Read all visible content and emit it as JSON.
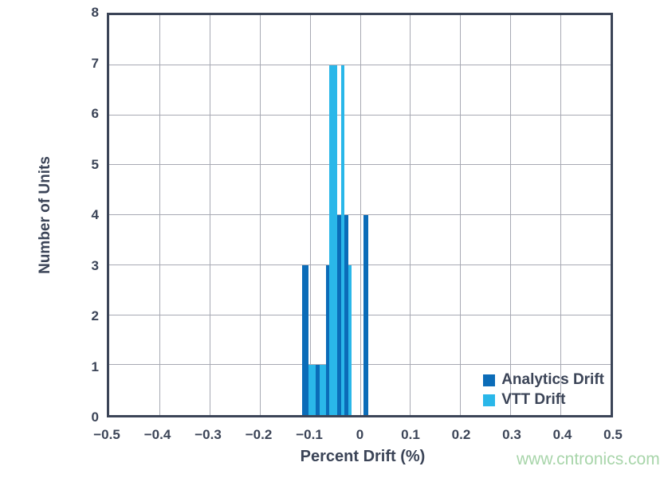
{
  "watermark_text": "www.cntronics.com",
  "colors": {
    "analytics": "#0b6cb8",
    "vtt": "#2ab7e9",
    "axis": "#3b4457",
    "grid": "#a7a9b3",
    "watermark": "#a8d5aa",
    "background": "#ffffff"
  },
  "chart_data": {
    "type": "bar",
    "title": "",
    "xlabel": "Percent Drift (%)",
    "ylabel": "Number of Units",
    "xlim": [
      -0.5,
      0.5
    ],
    "ylim": [
      0,
      8
    ],
    "grid": true,
    "legend_position": "inside-bottom-right",
    "x_tick_values": [
      -0.5,
      -0.4,
      -0.3,
      -0.2,
      -0.1,
      0,
      0.1,
      0.2,
      0.3,
      0.4,
      0.5
    ],
    "x_tick_labels": [
      "−0.5",
      "−0.4",
      "−0.3",
      "−0.2",
      "−0.1",
      "0",
      "0.1",
      "0.2",
      "0.3",
      "0.4",
      "0.5"
    ],
    "y_tick_values": [
      0,
      1,
      2,
      3,
      4,
      5,
      6,
      7,
      8
    ],
    "y_tick_labels": [
      "0",
      "1",
      "2",
      "3",
      "4",
      "5",
      "6",
      "7",
      "8"
    ],
    "series": [
      {
        "name": "Analytics Drift",
        "color_key": "analytics",
        "total_units": 19
      },
      {
        "name": "VTT Drift",
        "color_key": "vtt",
        "total_units": 19
      }
    ],
    "bars": [
      {
        "series": "Analytics Drift",
        "x0": -0.116,
        "x1": -0.102,
        "count": 3
      },
      {
        "series": "VTT Drift",
        "x0": -0.102,
        "x1": -0.088,
        "count": 1
      },
      {
        "series": "Analytics Drift",
        "x0": -0.088,
        "x1": -0.08,
        "count": 1
      },
      {
        "series": "VTT Drift",
        "x0": -0.08,
        "x1": -0.068,
        "count": 1
      },
      {
        "series": "Analytics Drift",
        "x0": -0.068,
        "x1": -0.061,
        "count": 3
      },
      {
        "series": "VTT Drift",
        "x0": -0.061,
        "x1": -0.046,
        "count": 7
      },
      {
        "series": "Analytics Drift",
        "x0": -0.046,
        "x1": -0.038,
        "count": 4
      },
      {
        "series": "VTT Drift",
        "x0": -0.038,
        "x1": -0.031,
        "count": 7
      },
      {
        "series": "Analytics Drift",
        "x0": -0.031,
        "x1": -0.023,
        "count": 4
      },
      {
        "series": "VTT Drift",
        "x0": -0.023,
        "x1": -0.016,
        "count": 3
      },
      {
        "series": "Analytics Drift",
        "x0": 0.007,
        "x1": 0.017,
        "count": 4
      }
    ]
  },
  "legend": {
    "items": [
      {
        "label": "Analytics Drift",
        "color_key": "analytics"
      },
      {
        "label": "VTT Drift",
        "color_key": "vtt"
      }
    ]
  }
}
